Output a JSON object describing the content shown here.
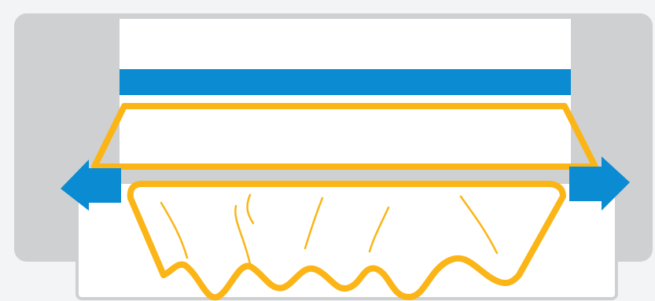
{
  "diagram": {
    "colors": {
      "background": "#f3f4f6",
      "housing": "#cfd0d2",
      "panel": "#ffffff",
      "band": "#0a8bd2",
      "outline": "#fbb516",
      "tray_border": "#cfd0d2",
      "arrow": "#0a8bd2"
    },
    "icons": {
      "left_arrow": "arrow-left-icon",
      "right_arrow": "arrow-right-icon"
    }
  }
}
